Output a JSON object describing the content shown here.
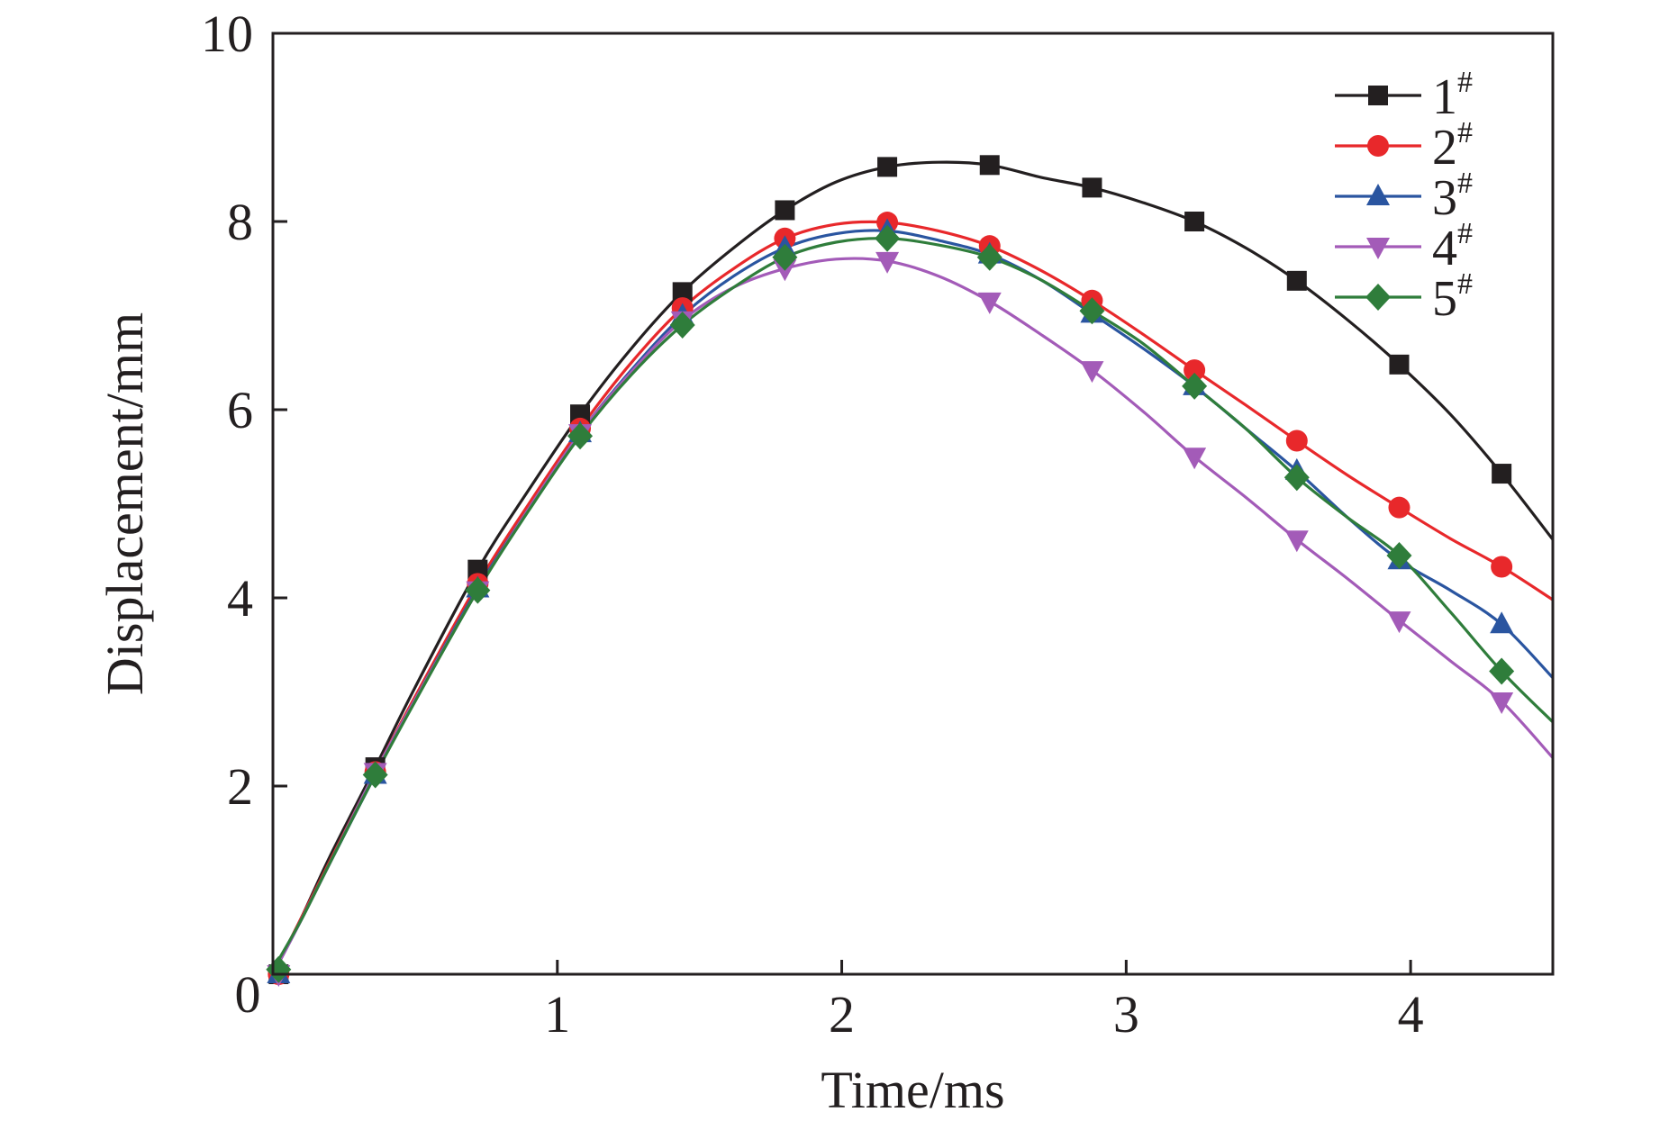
{
  "chart_data": {
    "type": "line",
    "title": "",
    "xlabel": "Time/ms",
    "ylabel": "Displacement/mm",
    "xlim": [
      0,
      4.5
    ],
    "ylim": [
      0,
      10
    ],
    "xticks": [
      1,
      2,
      3,
      4
    ],
    "yticks": [
      2,
      4,
      6,
      8,
      10
    ],
    "origin_label": "0",
    "legend_position": "top-right",
    "x": [
      0.02,
      0.36,
      0.72,
      1.08,
      1.44,
      1.8,
      2.16,
      2.52,
      2.88,
      3.24,
      3.6,
      3.96,
      4.32
    ],
    "series": [
      {
        "name": "1",
        "superscript": "#",
        "color": "#231f20",
        "marker": "square",
        "values": [
          0.0,
          2.2,
          4.3,
          5.95,
          7.25,
          8.12,
          8.58,
          8.6,
          8.36,
          8.0,
          7.37,
          6.48,
          5.32
        ],
        "curve_x": [
          0,
          0.1,
          0.2,
          0.36,
          0.5,
          0.72,
          0.9,
          1.08,
          1.26,
          1.44,
          1.62,
          1.8,
          1.98,
          2.16,
          2.34,
          2.52,
          2.7,
          2.88,
          3.06,
          3.24,
          3.42,
          3.6,
          3.78,
          3.96,
          4.14,
          4.32,
          4.5
        ],
        "curve_y": [
          0,
          0.6,
          1.25,
          2.2,
          3.05,
          4.3,
          5.15,
          5.95,
          6.65,
          7.25,
          7.72,
          8.12,
          8.42,
          8.58,
          8.63,
          8.6,
          8.47,
          8.36,
          8.2,
          8.0,
          7.72,
          7.37,
          6.95,
          6.48,
          5.95,
          5.32,
          4.62
        ]
      },
      {
        "name": "2",
        "superscript": "#",
        "color": "#e8282b",
        "marker": "circle",
        "values": [
          0.0,
          2.15,
          4.15,
          5.8,
          7.08,
          7.82,
          7.99,
          7.74,
          7.16,
          6.42,
          5.67,
          4.96,
          4.33
        ],
        "curve_x": [
          0,
          0.1,
          0.2,
          0.36,
          0.5,
          0.72,
          0.9,
          1.08,
          1.26,
          1.44,
          1.62,
          1.8,
          1.98,
          2.16,
          2.34,
          2.52,
          2.7,
          2.88,
          3.06,
          3.24,
          3.42,
          3.6,
          3.78,
          3.96,
          4.14,
          4.32,
          4.5
        ],
        "curve_y": [
          0,
          0.6,
          1.2,
          2.15,
          2.95,
          4.15,
          5.0,
          5.8,
          6.5,
          7.08,
          7.5,
          7.82,
          7.97,
          7.99,
          7.9,
          7.74,
          7.48,
          7.16,
          6.8,
          6.42,
          6.05,
          5.67,
          5.3,
          4.96,
          4.63,
          4.33,
          3.98
        ]
      },
      {
        "name": "3",
        "superscript": "#",
        "color": "#2a55a0",
        "marker": "triangle-up",
        "values": [
          0.0,
          2.12,
          4.1,
          5.75,
          7.0,
          7.72,
          7.9,
          7.65,
          7.02,
          6.25,
          5.35,
          4.4,
          3.72
        ],
        "curve_x": [
          0,
          0.1,
          0.2,
          0.36,
          0.5,
          0.72,
          0.9,
          1.08,
          1.26,
          1.44,
          1.62,
          1.8,
          1.98,
          2.16,
          2.34,
          2.52,
          2.7,
          2.88,
          3.06,
          3.24,
          3.42,
          3.6,
          3.78,
          3.96,
          4.14,
          4.32,
          4.5
        ],
        "curve_y": [
          0,
          0.58,
          1.18,
          2.12,
          2.92,
          4.1,
          4.95,
          5.75,
          6.42,
          7.0,
          7.42,
          7.72,
          7.87,
          7.9,
          7.8,
          7.65,
          7.38,
          7.02,
          6.65,
          6.25,
          5.8,
          5.35,
          4.85,
          4.4,
          4.08,
          3.72,
          3.15
        ]
      },
      {
        "name": "4",
        "superscript": "#",
        "color": "#a35bb8",
        "marker": "triangle-down",
        "values": [
          0.0,
          2.15,
          4.08,
          5.75,
          6.95,
          7.5,
          7.58,
          7.15,
          6.42,
          5.5,
          4.62,
          3.76,
          2.9
        ],
        "curve_x": [
          0,
          0.1,
          0.2,
          0.36,
          0.5,
          0.72,
          0.9,
          1.08,
          1.26,
          1.44,
          1.62,
          1.8,
          1.98,
          2.16,
          2.34,
          2.52,
          2.7,
          2.88,
          3.06,
          3.24,
          3.42,
          3.6,
          3.78,
          3.96,
          4.14,
          4.32,
          4.5
        ],
        "curve_y": [
          0,
          0.58,
          1.18,
          2.15,
          2.92,
          4.08,
          4.95,
          5.75,
          6.4,
          6.95,
          7.3,
          7.5,
          7.6,
          7.58,
          7.42,
          7.15,
          6.8,
          6.42,
          5.98,
          5.5,
          5.07,
          4.62,
          4.2,
          3.76,
          3.33,
          2.9,
          2.3
        ]
      },
      {
        "name": "5",
        "superscript": "#",
        "color": "#2f7d3b",
        "marker": "diamond",
        "values": [
          0.05,
          2.12,
          4.08,
          5.72,
          6.9,
          7.62,
          7.82,
          7.62,
          7.05,
          6.25,
          5.28,
          4.45,
          3.22
        ],
        "curve_x": [
          0,
          0.1,
          0.2,
          0.36,
          0.5,
          0.72,
          0.9,
          1.08,
          1.26,
          1.44,
          1.62,
          1.8,
          1.98,
          2.16,
          2.34,
          2.52,
          2.7,
          2.88,
          3.06,
          3.24,
          3.42,
          3.6,
          3.78,
          3.96,
          4.14,
          4.32,
          4.5
        ],
        "curve_y": [
          0.05,
          0.58,
          1.18,
          2.12,
          2.9,
          4.08,
          4.93,
          5.72,
          6.37,
          6.9,
          7.3,
          7.62,
          7.78,
          7.82,
          7.75,
          7.62,
          7.38,
          7.05,
          6.7,
          6.25,
          5.8,
          5.28,
          4.85,
          4.45,
          3.85,
          3.22,
          2.68
        ]
      }
    ]
  }
}
